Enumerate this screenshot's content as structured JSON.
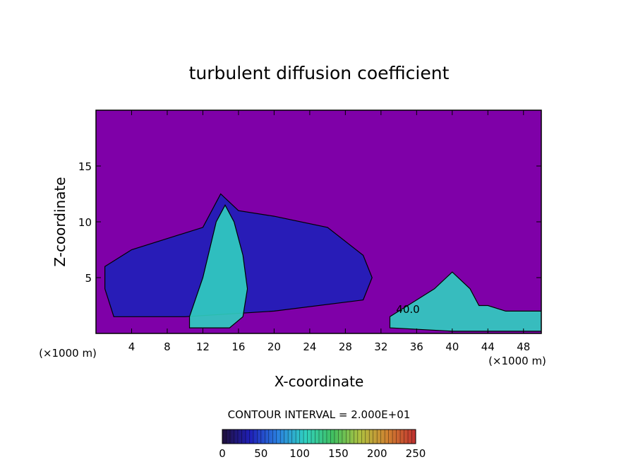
{
  "chart_data": {
    "type": "heatmap",
    "title": "turbulent diffusion coefficient",
    "xlabel": "X-coordinate",
    "ylabel": "Z-coordinate",
    "x_unit": "(×1000 m)",
    "x_unit_right": "(×1000 m)",
    "xlim": [
      0,
      50
    ],
    "ylim": [
      0,
      20
    ],
    "x_ticks": [
      4,
      8,
      12,
      16,
      20,
      24,
      28,
      32,
      36,
      40,
      44,
      48
    ],
    "y_ticks": [
      5,
      10,
      15
    ],
    "contour_interval_text": "CONTOUR INTERVAL = 2.000E+01",
    "contour_label": "40.0",
    "colorbar": {
      "min": 0,
      "max": 250,
      "ticks": [
        0,
        50,
        100,
        150,
        200,
        250
      ],
      "colors": [
        "#20103a",
        "#1f1fb8",
        "#2a7fe0",
        "#30d0c0",
        "#40c060",
        "#b0c040",
        "#d08030",
        "#c03030"
      ]
    },
    "background_color": "#7f00a8",
    "cloud_regions": [
      {
        "name": "main-cloud",
        "x": [
          1,
          4,
          8,
          12,
          14,
          16,
          20,
          26,
          30,
          31,
          30,
          20,
          10,
          2,
          1
        ],
        "z": [
          6,
          7.5,
          8.5,
          9.5,
          12.5,
          11,
          10.5,
          9.5,
          7,
          5,
          3,
          2,
          1.5,
          1.5,
          4
        ],
        "value": 40
      },
      {
        "name": "updraft-core",
        "x": [
          10.5,
          12,
          13.5,
          14.5,
          15.5,
          16.5,
          17,
          16.5,
          15,
          13.5,
          12,
          10.5
        ],
        "z": [
          1.5,
          5,
          10,
          11.5,
          10,
          7,
          4,
          1.5,
          0.5,
          0.5,
          0.5,
          0.5
        ],
        "value": 90
      },
      {
        "name": "right-plume",
        "x": [
          33,
          36,
          38,
          40,
          42,
          43,
          44,
          46,
          50,
          50,
          40,
          33
        ],
        "z": [
          1.5,
          3,
          4,
          5.5,
          4,
          2.5,
          2.5,
          2,
          2,
          0.2,
          0.2,
          0.5
        ],
        "value": 110
      }
    ]
  }
}
